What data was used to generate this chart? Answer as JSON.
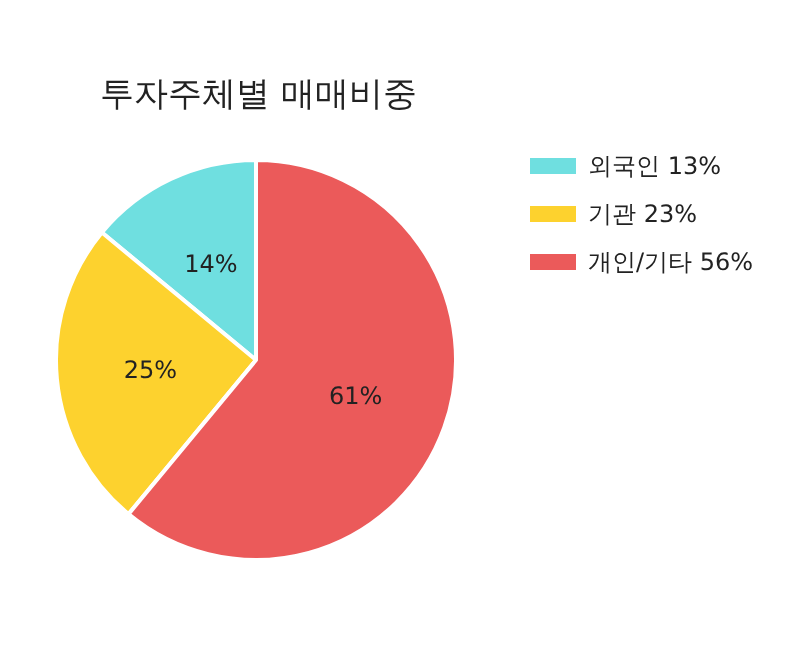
{
  "chart_data": {
    "type": "pie",
    "title": "투자주체별 매매비중",
    "categories": [
      "외국인 13%",
      "기관 23%",
      "개인/기타 56%"
    ],
    "values": [
      14,
      25,
      61
    ],
    "value_labels": [
      "14%",
      "25%",
      "61%"
    ],
    "colors": [
      "#6fdfe0",
      "#fdd22e",
      "#eb5a5a"
    ],
    "legend": "top right"
  }
}
